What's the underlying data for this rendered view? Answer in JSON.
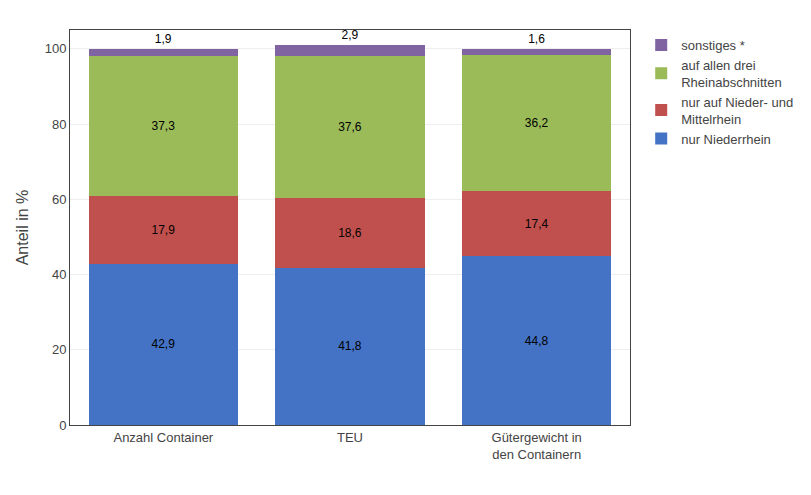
{
  "chart_data": {
    "type": "bar",
    "stacked": true,
    "categories": [
      "Anzahl Container",
      "TEU",
      "Gütergewicht in\nden Containern"
    ],
    "series": [
      {
        "name": "nur Niederrhein",
        "color": "#4472C4",
        "values": [
          42.9,
          41.8,
          44.8
        ],
        "value_labels": [
          "42,9",
          "41,8",
          "44,8"
        ]
      },
      {
        "name": "nur auf Nieder- und\nMittelrhein",
        "color": "#C0504D",
        "values": [
          17.9,
          18.6,
          17.4
        ],
        "value_labels": [
          "17,9",
          "18,6",
          "17,4"
        ]
      },
      {
        "name": "auf allen drei\nRheinabschnitten",
        "color": "#9BBB59",
        "values": [
          37.3,
          37.6,
          36.2
        ],
        "value_labels": [
          "37,3",
          "37,6",
          "36,2"
        ]
      },
      {
        "name": "sonstiges *",
        "color": "#8064A2",
        "values": [
          1.9,
          2.9,
          1.6
        ],
        "value_labels": [
          "1,9",
          "2,9",
          "1,6"
        ]
      }
    ],
    "y_label": "Anteil in %",
    "ylim": [
      0,
      105
    ],
    "yticks": [
      0,
      20,
      40,
      60,
      80,
      100
    ],
    "grid": true,
    "data_labels": true,
    "legend": "upper right"
  }
}
